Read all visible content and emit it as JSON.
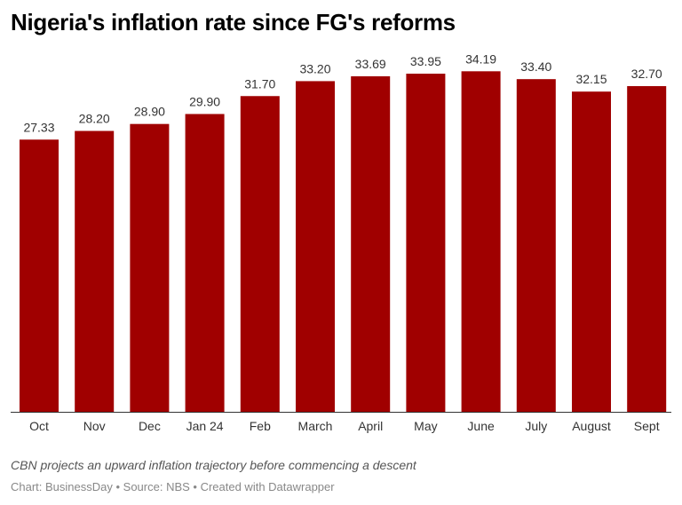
{
  "chart_data": {
    "type": "bar",
    "title": "Nigeria's inflation rate since FG's reforms",
    "categories": [
      "Oct",
      "Nov",
      "Dec",
      "Jan 24",
      "Feb",
      "March",
      "April",
      "May",
      "June",
      "July",
      "August",
      "Sept"
    ],
    "values": [
      27.33,
      28.2,
      28.9,
      29.9,
      31.7,
      33.2,
      33.69,
      33.95,
      34.19,
      33.4,
      32.15,
      32.7
    ],
    "value_labels": [
      "27.33",
      "28.20",
      "28.90",
      "29.90",
      "31.70",
      "33.20",
      "33.69",
      "33.95",
      "34.19",
      "33.40",
      "32.15",
      "32.70"
    ],
    "ylim": [
      0,
      36
    ],
    "grid": false,
    "bar_color": "#a00000",
    "xlabel": "",
    "ylabel": ""
  },
  "notes": "CBN projects an upward inflation trajectory before commencing a descent",
  "credit": "Chart: BusinessDay • Source: NBS • Created with Datawrapper"
}
